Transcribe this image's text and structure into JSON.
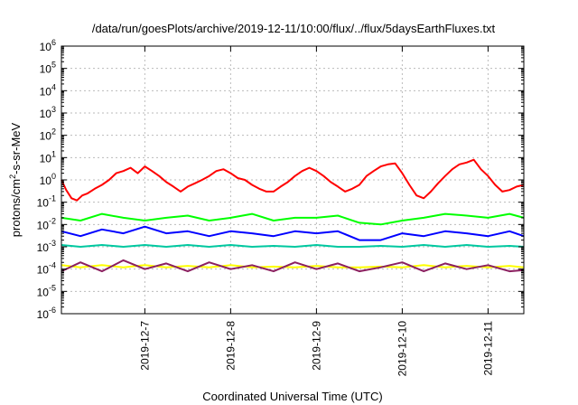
{
  "chart_data": {
    "type": "line",
    "title": "/data/run/goesPlots/archive/2019-12-11/10:00/flux/../flux/5daysEarthFluxes.txt",
    "ylabel": "protons/cm²-s-sr-MeV",
    "xlabel": "Coordinated Universal Time (UTC)",
    "yscale": "log",
    "ylim": [
      1e-06,
      1000000.0
    ],
    "xlim": [
      "2019-12-06T00:40",
      "2019-12-11T10:00"
    ],
    "x_ticks": [
      "2019-12-7",
      "2019-12-8",
      "2019-12-9",
      "2019-12-10",
      "2019-12-11"
    ],
    "y_ticks": [
      {
        "base": "10",
        "exp": "-6"
      },
      {
        "base": "10",
        "exp": "-5"
      },
      {
        "base": "10",
        "exp": "-4"
      },
      {
        "base": "10",
        "exp": "-3"
      },
      {
        "base": "10",
        "exp": "-2"
      },
      {
        "base": "10",
        "exp": "-1"
      },
      {
        "base": "10",
        "exp": "0"
      },
      {
        "base": "10",
        "exp": "1"
      },
      {
        "base": "10",
        "exp": "2"
      },
      {
        "base": "10",
        "exp": "3"
      },
      {
        "base": "10",
        "exp": "4"
      },
      {
        "base": "10",
        "exp": "5"
      },
      {
        "base": "10",
        "exp": "6"
      }
    ],
    "grid": true,
    "series": [
      {
        "color": "#ff0000",
        "x": [
          "2019-12-06T00:40",
          "2019-12-06T02:00",
          "2019-12-06T03:30",
          "2019-12-06T05:00",
          "2019-12-06T06:30",
          "2019-12-06T08:00",
          "2019-12-06T10:00",
          "2019-12-06T12:00",
          "2019-12-06T14:00",
          "2019-12-06T16:00",
          "2019-12-06T18:00",
          "2019-12-06T20:00",
          "2019-12-06T22:00",
          "2019-12-07T00:00",
          "2019-12-07T02:00",
          "2019-12-07T04:00",
          "2019-12-07T06:00",
          "2019-12-07T08:00",
          "2019-12-07T10:00",
          "2019-12-07T12:00",
          "2019-12-07T14:00",
          "2019-12-07T16:00",
          "2019-12-07T18:00",
          "2019-12-07T20:00",
          "2019-12-07T22:00",
          "2019-12-08T00:00",
          "2019-12-08T02:00",
          "2019-12-08T04:00",
          "2019-12-08T06:00",
          "2019-12-08T08:00",
          "2019-12-08T10:00",
          "2019-12-08T12:00",
          "2019-12-08T14:00",
          "2019-12-08T16:00",
          "2019-12-08T18:00",
          "2019-12-08T20:00",
          "2019-12-08T22:00",
          "2019-12-09T00:00",
          "2019-12-09T02:00",
          "2019-12-09T04:00",
          "2019-12-09T06:00",
          "2019-12-09T08:00",
          "2019-12-09T10:00",
          "2019-12-09T12:00",
          "2019-12-09T14:00",
          "2019-12-09T16:00",
          "2019-12-09T18:00",
          "2019-12-09T20:00",
          "2019-12-09T22:00",
          "2019-12-10T00:00",
          "2019-12-10T02:00",
          "2019-12-10T04:00",
          "2019-12-10T06:00",
          "2019-12-10T08:00",
          "2019-12-10T10:00",
          "2019-12-10T12:00",
          "2019-12-10T14:00",
          "2019-12-10T16:00",
          "2019-12-10T18:00",
          "2019-12-10T20:00",
          "2019-12-10T22:00",
          "2019-12-11T00:00",
          "2019-12-11T02:00",
          "2019-12-11T04:00",
          "2019-12-11T06:00",
          "2019-12-11T08:00",
          "2019-12-11T10:00"
        ],
        "y": [
          1.0,
          0.35,
          0.15,
          0.12,
          0.2,
          0.25,
          0.4,
          0.6,
          1.0,
          2.0,
          2.5,
          3.5,
          2.0,
          4.0,
          2.5,
          1.5,
          0.8,
          0.5,
          0.3,
          0.5,
          0.7,
          1.0,
          1.5,
          2.5,
          3.0,
          2.0,
          1.2,
          1.0,
          0.6,
          0.4,
          0.3,
          0.3,
          0.5,
          0.8,
          1.5,
          2.5,
          3.5,
          2.5,
          1.5,
          0.8,
          0.5,
          0.3,
          0.4,
          0.6,
          1.5,
          2.5,
          4.0,
          5.0,
          5.5,
          2.0,
          0.6,
          0.2,
          0.15,
          0.3,
          0.7,
          1.5,
          3.0,
          5.0,
          6.0,
          8.0,
          3.0,
          1.5,
          0.6,
          0.3,
          0.35,
          0.5,
          0.6
        ]
      },
      {
        "color": "#00ff00",
        "x": [
          "2019-12-06T00:40",
          "2019-12-06T06:00",
          "2019-12-06T12:00",
          "2019-12-06T18:00",
          "2019-12-07T00:00",
          "2019-12-07T06:00",
          "2019-12-07T12:00",
          "2019-12-07T18:00",
          "2019-12-08T00:00",
          "2019-12-08T06:00",
          "2019-12-08T12:00",
          "2019-12-08T18:00",
          "2019-12-09T00:00",
          "2019-12-09T06:00",
          "2019-12-09T12:00",
          "2019-12-09T18:00",
          "2019-12-10T00:00",
          "2019-12-10T06:00",
          "2019-12-10T12:00",
          "2019-12-10T18:00",
          "2019-12-11T00:00",
          "2019-12-11T06:00",
          "2019-12-11T10:00"
        ],
        "y": [
          0.02,
          0.015,
          0.03,
          0.02,
          0.015,
          0.02,
          0.025,
          0.015,
          0.02,
          0.03,
          0.015,
          0.02,
          0.02,
          0.025,
          0.012,
          0.01,
          0.015,
          0.02,
          0.03,
          0.025,
          0.02,
          0.03,
          0.02
        ]
      },
      {
        "color": "#0000ff",
        "x": [
          "2019-12-06T00:40",
          "2019-12-06T06:00",
          "2019-12-06T12:00",
          "2019-12-06T18:00",
          "2019-12-07T00:00",
          "2019-12-07T06:00",
          "2019-12-07T12:00",
          "2019-12-07T18:00",
          "2019-12-08T00:00",
          "2019-12-08T06:00",
          "2019-12-08T12:00",
          "2019-12-08T18:00",
          "2019-12-09T00:00",
          "2019-12-09T06:00",
          "2019-12-09T12:00",
          "2019-12-09T18:00",
          "2019-12-10T00:00",
          "2019-12-10T06:00",
          "2019-12-10T12:00",
          "2019-12-10T18:00",
          "2019-12-11T00:00",
          "2019-12-11T06:00",
          "2019-12-11T10:00"
        ],
        "y": [
          0.005,
          0.003,
          0.006,
          0.004,
          0.008,
          0.004,
          0.005,
          0.003,
          0.005,
          0.004,
          0.003,
          0.005,
          0.004,
          0.005,
          0.002,
          0.002,
          0.004,
          0.003,
          0.005,
          0.004,
          0.003,
          0.005,
          0.003
        ]
      },
      {
        "color": "#00c8a0",
        "x": [
          "2019-12-06T00:40",
          "2019-12-06T06:00",
          "2019-12-06T12:00",
          "2019-12-06T18:00",
          "2019-12-07T00:00",
          "2019-12-07T06:00",
          "2019-12-07T12:00",
          "2019-12-07T18:00",
          "2019-12-08T00:00",
          "2019-12-08T06:00",
          "2019-12-08T12:00",
          "2019-12-08T18:00",
          "2019-12-09T00:00",
          "2019-12-09T06:00",
          "2019-12-09T12:00",
          "2019-12-09T18:00",
          "2019-12-10T00:00",
          "2019-12-10T06:00",
          "2019-12-10T12:00",
          "2019-12-10T18:00",
          "2019-12-11T00:00",
          "2019-12-11T06:00",
          "2019-12-11T10:00"
        ],
        "y": [
          0.0012,
          0.001,
          0.0012,
          0.001,
          0.0012,
          0.001,
          0.0012,
          0.001,
          0.0012,
          0.001,
          0.0011,
          0.001,
          0.0012,
          0.001,
          0.001,
          0.0011,
          0.001,
          0.0012,
          0.001,
          0.0012,
          0.001,
          0.0011,
          0.001
        ]
      },
      {
        "color": "#ffff00",
        "x": [
          "2019-12-06T00:40",
          "2019-12-06T06:00",
          "2019-12-06T12:00",
          "2019-12-06T18:00",
          "2019-12-07T00:00",
          "2019-12-07T06:00",
          "2019-12-07T12:00",
          "2019-12-07T18:00",
          "2019-12-08T00:00",
          "2019-12-08T06:00",
          "2019-12-08T12:00",
          "2019-12-08T18:00",
          "2019-12-09T00:00",
          "2019-12-09T06:00",
          "2019-12-09T12:00",
          "2019-12-09T18:00",
          "2019-12-10T00:00",
          "2019-12-10T06:00",
          "2019-12-10T12:00",
          "2019-12-10T18:00",
          "2019-12-11T00:00",
          "2019-12-11T06:00",
          "2019-12-11T10:00"
        ],
        "y": [
          0.00015,
          0.00012,
          0.00015,
          0.00012,
          0.00015,
          0.00012,
          0.00014,
          0.00012,
          0.00015,
          0.00012,
          0.00013,
          0.00012,
          0.00014,
          0.00012,
          0.00012,
          0.00013,
          0.00012,
          0.00015,
          0.00012,
          0.00014,
          0.00012,
          0.00014,
          0.00012
        ]
      },
      {
        "color": "#8b2060",
        "x": [
          "2019-12-06T00:40",
          "2019-12-06T06:00",
          "2019-12-06T12:00",
          "2019-12-06T18:00",
          "2019-12-07T00:00",
          "2019-12-07T06:00",
          "2019-12-07T12:00",
          "2019-12-07T18:00",
          "2019-12-08T00:00",
          "2019-12-08T06:00",
          "2019-12-08T12:00",
          "2019-12-08T18:00",
          "2019-12-09T00:00",
          "2019-12-09T06:00",
          "2019-12-09T12:00",
          "2019-12-09T18:00",
          "2019-12-10T00:00",
          "2019-12-10T06:00",
          "2019-12-10T12:00",
          "2019-12-10T18:00",
          "2019-12-11T00:00",
          "2019-12-11T06:00",
          "2019-12-11T10:00"
        ],
        "y": [
          8e-05,
          0.0002,
          8e-05,
          0.00025,
          0.0001,
          0.00018,
          8e-05,
          0.0002,
          0.0001,
          0.00015,
          8e-05,
          0.0002,
          0.0001,
          0.00018,
          8e-05,
          0.00012,
          0.0002,
          8e-05,
          0.00018,
          0.0001,
          0.00015,
          8e-05,
          9e-05
        ]
      }
    ]
  }
}
